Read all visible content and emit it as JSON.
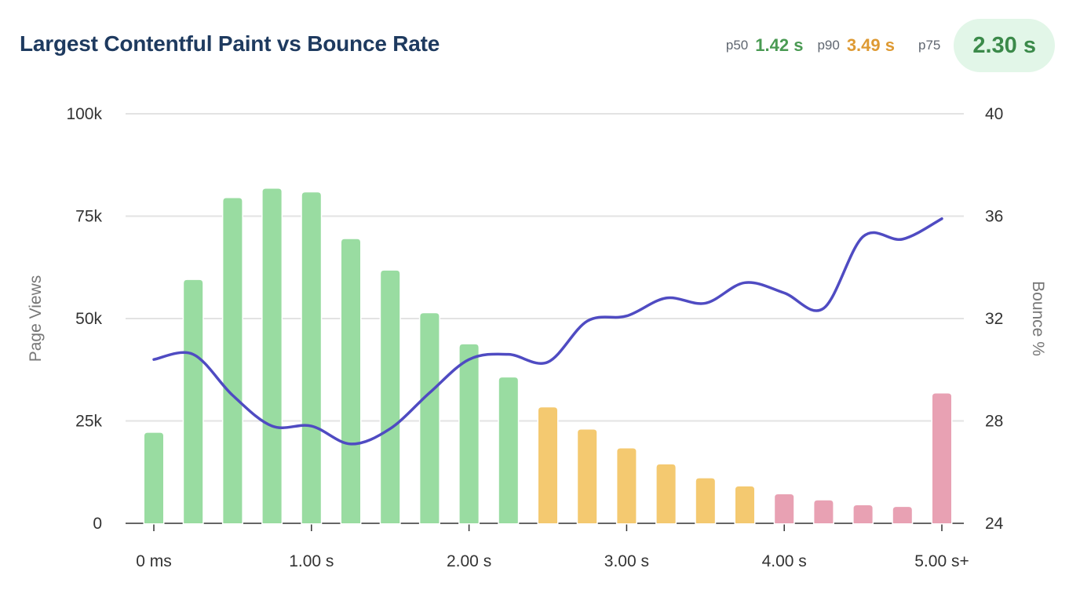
{
  "header": {
    "title": "Largest Contentful Paint vs Bounce Rate",
    "p50_label": "p50",
    "p50_value": "1.42 s",
    "p90_label": "p90",
    "p90_value": "3.49 s",
    "p75_label": "p75",
    "p75_value": "2.30 s"
  },
  "colors": {
    "good": "#99dca1",
    "needs_improvement": "#f4c970",
    "poor": "#e8a1b3",
    "line": "#4f4bc2",
    "p50": "#4a9a53",
    "p90": "#de9a33",
    "p75": "#3b8a4a"
  },
  "chart_data": {
    "type": "bar+line",
    "title": "Largest Contentful Paint vs Bounce Rate",
    "ylabel": "Page Views",
    "y2label": "Bounce %",
    "ylim": [
      0,
      100000
    ],
    "y2lim": [
      24,
      40
    ],
    "yticks": [
      "0",
      "25k",
      "50k",
      "75k",
      "100k"
    ],
    "y2ticks": [
      "24",
      "28",
      "32",
      "36",
      "40"
    ],
    "xticks": [
      "0 ms",
      "1.00 s",
      "2.00 s",
      "3.00 s",
      "4.00 s",
      "5.00 s+"
    ],
    "grid": true,
    "x": [
      0,
      0.25,
      0.5,
      0.75,
      1.0,
      1.25,
      1.5,
      1.75,
      2.0,
      2.25,
      2.5,
      2.75,
      3.0,
      3.25,
      3.5,
      3.75,
      4.0,
      4.25,
      4.5,
      4.75,
      5.0
    ],
    "page_views": [
      22100,
      59400,
      79400,
      81700,
      80800,
      69400,
      61700,
      51300,
      43700,
      35600,
      28300,
      22900,
      18300,
      14400,
      11000,
      9000,
      7100,
      5600,
      4400,
      4000,
      31700
    ],
    "bar_rating": [
      "good",
      "good",
      "good",
      "good",
      "good",
      "good",
      "good",
      "good",
      "good",
      "good",
      "needs_improvement",
      "needs_improvement",
      "needs_improvement",
      "needs_improvement",
      "needs_improvement",
      "needs_improvement",
      "poor",
      "poor",
      "poor",
      "poor",
      "poor"
    ],
    "bounce_rate": [
      30.4,
      30.6,
      29.0,
      27.8,
      27.8,
      27.1,
      27.7,
      29.1,
      30.4,
      30.6,
      30.3,
      31.9,
      32.1,
      32.8,
      32.6,
      33.4,
      33.0,
      32.4,
      35.2,
      35.1,
      35.9
    ]
  }
}
